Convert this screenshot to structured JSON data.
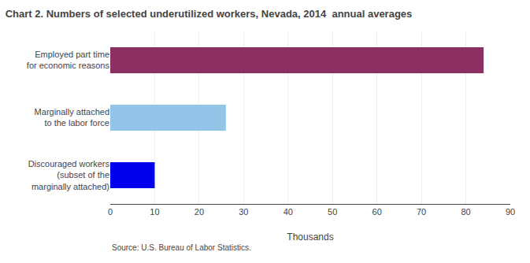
{
  "chart_data": {
    "type": "bar",
    "orientation": "horizontal",
    "title": "Chart 2. Numbers of selected underutilized workers, Nevada, 2014  annual averages",
    "categories": [
      "Discouraged workers\n(subset of the\nmarginally attached)",
      "Marginally attached\nto the labor force",
      "Employed part time\nfor economic reasons"
    ],
    "values": [
      10,
      26,
      84
    ],
    "colors": [
      "#0000EE",
      "#92C5E8",
      "#8B3060"
    ],
    "xlabel": "Thousands",
    "xlim": [
      0,
      90
    ],
    "xticks": [
      0,
      10,
      20,
      30,
      40,
      50,
      60,
      70,
      80,
      90
    ],
    "grid": true,
    "annotations": [
      "Source: U.S. Bureau of Labor Statistics."
    ]
  }
}
